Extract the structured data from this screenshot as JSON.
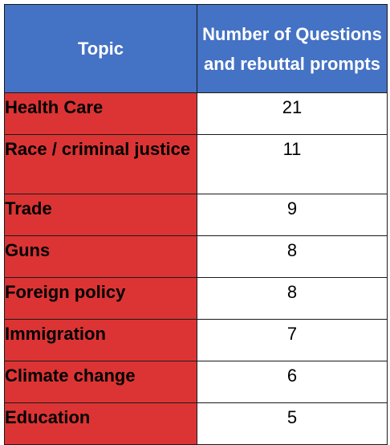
{
  "chart_data": {
    "type": "table",
    "columns": [
      "Topic",
      "Number of Questions and rebuttal prompts"
    ],
    "rows": [
      {
        "topic": "Health Care",
        "count": "21"
      },
      {
        "topic": "Race / criminal justice",
        "count": "11"
      },
      {
        "topic": "Trade",
        "count": "9"
      },
      {
        "topic": "Guns",
        "count": "8"
      },
      {
        "topic": "Foreign policy",
        "count": "8"
      },
      {
        "topic": "Immigration",
        "count": "7"
      },
      {
        "topic": "Climate change",
        "count": "6"
      },
      {
        "topic": "Education",
        "count": "5"
      }
    ]
  },
  "colors": {
    "header_bg": "#4472c4",
    "topic_bg": "#dc3434",
    "value_bg": "#ffffff"
  }
}
